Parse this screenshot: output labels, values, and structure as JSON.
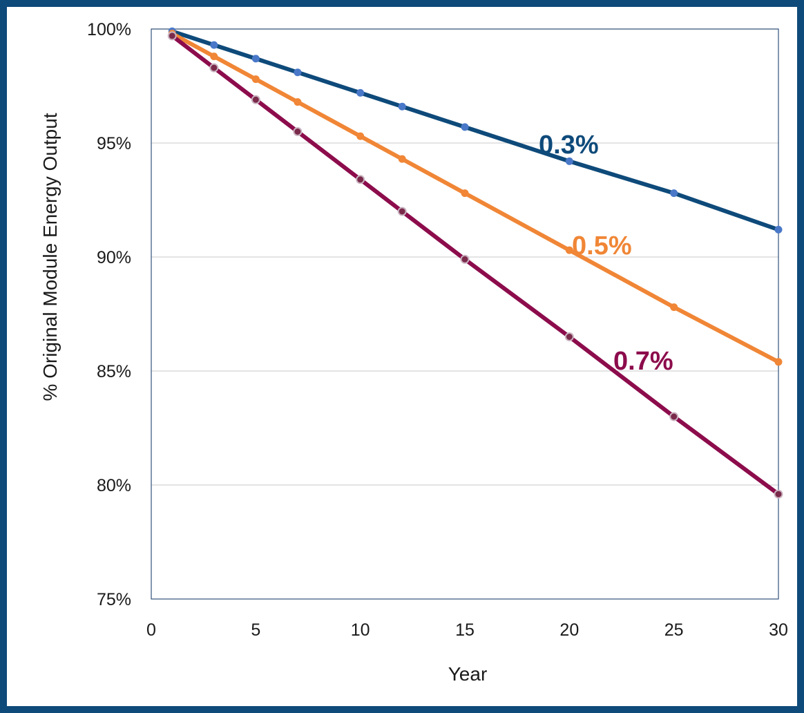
{
  "chart_data": {
    "type": "line",
    "title": "",
    "xlabel": "Year",
    "ylabel": "% Original Module Energy Output",
    "xlim": [
      0,
      30
    ],
    "ylim": [
      75,
      100
    ],
    "x_ticks": [
      "0",
      "5",
      "10",
      "15",
      "20",
      "25",
      "30"
    ],
    "y_ticks": [
      "75%",
      "80%",
      "85%",
      "90%",
      "95%",
      "100%"
    ],
    "grid": "horizontal",
    "legend": "none",
    "x": [
      1,
      3,
      5,
      7,
      10,
      12,
      15,
      20,
      25,
      30
    ],
    "series": [
      {
        "name": "0.3%",
        "color": "#0e4a7a",
        "marker_color": "#4a78c8",
        "values": [
          99.9,
          99.3,
          98.7,
          98.1,
          97.2,
          96.6,
          95.7,
          94.2,
          92.8,
          91.2
        ]
      },
      {
        "name": "0.5%",
        "color": "#f08636",
        "marker_color": "#f08636",
        "values": [
          99.8,
          98.8,
          97.8,
          96.8,
          95.3,
          94.3,
          92.8,
          90.3,
          87.8,
          85.4
        ]
      },
      {
        "name": "0.7%",
        "color": "#8c0c4c",
        "marker_color": "#8c0c4c",
        "values": [
          99.7,
          98.3,
          96.9,
          95.5,
          93.4,
          92.0,
          89.9,
          86.5,
          83.0,
          79.6
        ]
      }
    ]
  }
}
